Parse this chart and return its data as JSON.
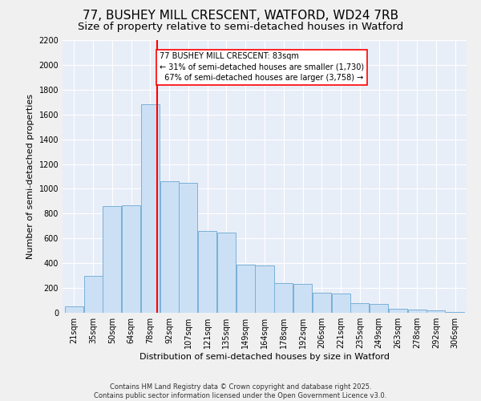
{
  "title1": "77, BUSHEY MILL CRESCENT, WATFORD, WD24 7RB",
  "title2": "Size of property relative to semi-detached houses in Watford",
  "xlabel": "Distribution of semi-detached houses by size in Watford",
  "ylabel": "Number of semi-detached properties",
  "categories": [
    "21sqm",
    "35sqm",
    "50sqm",
    "64sqm",
    "78sqm",
    "92sqm",
    "107sqm",
    "121sqm",
    "135sqm",
    "149sqm",
    "164sqm",
    "178sqm",
    "192sqm",
    "206sqm",
    "221sqm",
    "235sqm",
    "249sqm",
    "263sqm",
    "278sqm",
    "292sqm",
    "306sqm"
  ],
  "bar_heights": [
    50,
    300,
    860,
    870,
    1680,
    1060,
    1050,
    660,
    650,
    390,
    385,
    240,
    235,
    160,
    155,
    75,
    70,
    30,
    25,
    20,
    5
  ],
  "bar_color": "#cce0f5",
  "bar_edge_color": "#7ab0d8",
  "property_line_x": 4,
  "annotation_text": "77 BUSHEY MILL CRESCENT: 83sqm\n← 31% of semi-detached houses are smaller (1,730)\n  67% of semi-detached houses are larger (3,758) →",
  "ylim": [
    0,
    2200
  ],
  "yticks": [
    0,
    200,
    400,
    600,
    800,
    1000,
    1200,
    1400,
    1600,
    1800,
    2000,
    2200
  ],
  "footnote": "Contains HM Land Registry data © Crown copyright and database right 2025.\nContains public sector information licensed under the Open Government Licence v3.0.",
  "bg_color": "#e8eef8",
  "grid_color": "#ffffff",
  "fig_bg": "#f0f0f0",
  "title_fontsize": 11,
  "subtitle_fontsize": 9.5,
  "axis_label_fontsize": 8,
  "tick_fontsize": 7,
  "annotation_fontsize": 7
}
